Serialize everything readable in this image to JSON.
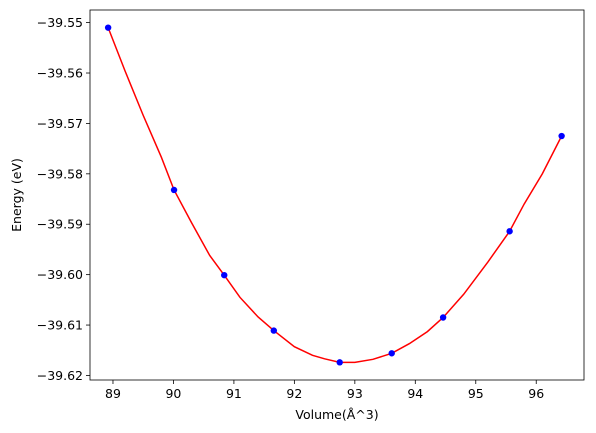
{
  "chart_data": {
    "type": "line",
    "title": "",
    "xlabel": "Volume(Å^3)",
    "ylabel": "Energy (eV)",
    "xlim": [
      88.62,
      96.79
    ],
    "ylim": [
      -39.6209,
      -39.5475
    ],
    "xticks": [
      89,
      90,
      91,
      92,
      93,
      94,
      95,
      96
    ],
    "xtick_labels": [
      "89",
      "90",
      "91",
      "92",
      "93",
      "94",
      "95",
      "96"
    ],
    "yticks": [
      -39.55,
      -39.56,
      -39.57,
      -39.58,
      -39.59,
      -39.6,
      -39.61,
      -39.62
    ],
    "ytick_labels": [
      "−39.55",
      "−39.56",
      "−39.57",
      "−39.58",
      "−39.59",
      "−39.60",
      "−39.61",
      "−39.62"
    ],
    "grid": false,
    "series": [
      {
        "kind": "scatter",
        "color": "#0000ff",
        "x": [
          88.92,
          90.01,
          90.84,
          91.66,
          92.75,
          93.61,
          94.46,
          95.56,
          96.42
        ],
        "y": [
          -39.551,
          -39.5832,
          -39.6001,
          -39.6111,
          -39.6174,
          -39.6156,
          -39.6085,
          -39.5914,
          -39.5725
        ]
      },
      {
        "kind": "line",
        "color": "#ff0000",
        "x": [
          88.92,
          89.2,
          89.5,
          89.8,
          90.01,
          90.3,
          90.6,
          90.84,
          91.1,
          91.4,
          91.66,
          92.0,
          92.3,
          92.5,
          92.75,
          93.0,
          93.3,
          93.61,
          93.9,
          94.2,
          94.46,
          94.8,
          95.2,
          95.56,
          95.8,
          96.1,
          96.42
        ],
        "y": [
          -39.551,
          -39.5596,
          -39.5684,
          -39.5767,
          -39.5832,
          -39.5897,
          -39.5962,
          -39.6001,
          -39.6045,
          -39.6084,
          -39.6111,
          -39.6143,
          -39.616,
          -39.6167,
          -39.6174,
          -39.6174,
          -39.6168,
          -39.6156,
          -39.6137,
          -39.6113,
          -39.6085,
          -39.6039,
          -39.5975,
          -39.5914,
          -39.586,
          -39.58,
          -39.5725
        ]
      }
    ]
  }
}
